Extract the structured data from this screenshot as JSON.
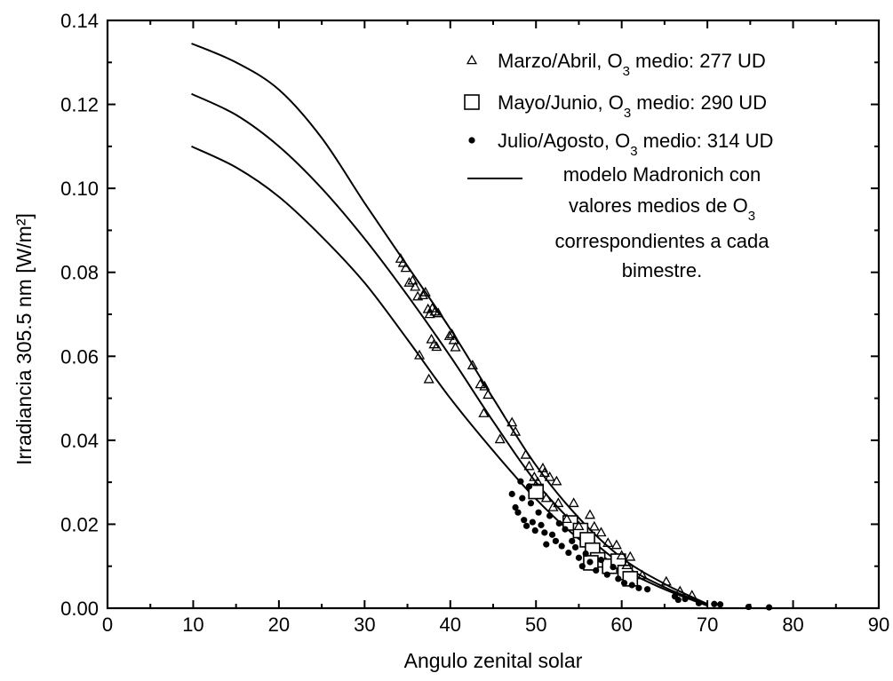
{
  "chart_data": {
    "type": "scatter",
    "title": "",
    "xlabel": "Angulo zenital solar",
    "ylabel": "Irradiancia 305.5 nm [W/m²]",
    "xlim": [
      0,
      90
    ],
    "ylim": [
      0,
      0.14
    ],
    "x_ticks": [
      "0",
      "10",
      "20",
      "30",
      "40",
      "50",
      "60",
      "70",
      "80",
      "90"
    ],
    "y_ticks": [
      "0.00",
      "0.02",
      "0.04",
      "0.06",
      "0.08",
      "0.10",
      "0.12",
      "0.14"
    ],
    "grid": false,
    "legend_position": "top-right",
    "legend": {
      "entries": [
        {
          "marker": "triangle-open",
          "text": "Marzo/Abril, O",
          "sub": "3",
          "suffix": " medio: 277 UD"
        },
        {
          "marker": "square-open",
          "text": "Mayo/Junio, O",
          "sub": "3",
          "suffix": " medio: 290 UD"
        },
        {
          "marker": "circle-filled",
          "text": "Julio/Agosto, O",
          "sub": "3",
          "suffix": " medio: 314 UD"
        }
      ],
      "model_lines": [
        {
          "text": "modelo Madronich con",
          "sub": "",
          "suffix": ""
        },
        {
          "text": "valores medios de O",
          "sub": "3",
          "suffix": ""
        },
        {
          "text": "correspondientes a cada",
          "sub": "",
          "suffix": ""
        },
        {
          "text": "bimestre.",
          "sub": "",
          "suffix": ""
        }
      ]
    },
    "series": [
      {
        "marker": "triangle-open",
        "points": [
          [
            34.2,
            0.0832
          ],
          [
            34.5,
            0.0822
          ],
          [
            34.8,
            0.081
          ],
          [
            35.2,
            0.0775
          ],
          [
            35.6,
            0.078
          ],
          [
            35.9,
            0.0765
          ],
          [
            36.2,
            0.0742
          ],
          [
            36.8,
            0.0745
          ],
          [
            37.1,
            0.0752
          ],
          [
            37.4,
            0.0712
          ],
          [
            37.6,
            0.07
          ],
          [
            37.9,
            0.0714
          ],
          [
            38.2,
            0.0706
          ],
          [
            38.6,
            0.0702
          ],
          [
            36.4,
            0.0602
          ],
          [
            37.5,
            0.0545
          ],
          [
            37.8,
            0.064
          ],
          [
            38.1,
            0.0628
          ],
          [
            38.4,
            0.0622
          ],
          [
            39.9,
            0.0648
          ],
          [
            40.2,
            0.0652
          ],
          [
            40.4,
            0.0638
          ],
          [
            40.6,
            0.0621
          ],
          [
            42.6,
            0.0578
          ],
          [
            43.5,
            0.0533
          ],
          [
            44.0,
            0.0528
          ],
          [
            44.4,
            0.0508
          ],
          [
            43.9,
            0.0464
          ],
          [
            45.8,
            0.0402
          ],
          [
            47.2,
            0.0442
          ],
          [
            47.6,
            0.042
          ],
          [
            48.8,
            0.0365
          ],
          [
            49.2,
            0.0338
          ],
          [
            49.8,
            0.0312
          ],
          [
            50.2,
            0.03
          ],
          [
            50.8,
            0.0333
          ],
          [
            51.0,
            0.0322
          ],
          [
            51.6,
            0.0312
          ],
          [
            52.4,
            0.0302
          ],
          [
            51.2,
            0.0262
          ],
          [
            52.0,
            0.024
          ],
          [
            52.6,
            0.025
          ],
          [
            53.6,
            0.0212
          ],
          [
            54.4,
            0.025
          ],
          [
            55.0,
            0.0195
          ],
          [
            56.3,
            0.0222
          ],
          [
            56.8,
            0.0194
          ],
          [
            57.6,
            0.018
          ],
          [
            58.4,
            0.0155
          ],
          [
            59.4,
            0.015
          ],
          [
            60.0,
            0.0125
          ],
          [
            61.0,
            0.0122
          ],
          [
            60.6,
            0.0102
          ],
          [
            62.4,
            0.0078
          ],
          [
            65.2,
            0.0063
          ],
          [
            66.8,
            0.004
          ],
          [
            68.2,
            0.003
          ]
        ]
      },
      {
        "marker": "square-open",
        "points": [
          [
            50.0,
            0.0278
          ],
          [
            54.0,
            0.0203
          ],
          [
            55.2,
            0.0185
          ],
          [
            56.0,
            0.0163
          ],
          [
            56.6,
            0.0138
          ],
          [
            57.2,
            0.0115
          ],
          [
            56.4,
            0.0108
          ],
          [
            58.6,
            0.01
          ],
          [
            59.6,
            0.0112
          ],
          [
            60.4,
            0.0085
          ],
          [
            61.0,
            0.007
          ]
        ]
      },
      {
        "marker": "circle-filled",
        "points": [
          [
            47.2,
            0.0272
          ],
          [
            47.6,
            0.024
          ],
          [
            47.9,
            0.0228
          ],
          [
            48.2,
            0.0302
          ],
          [
            48.4,
            0.0262
          ],
          [
            48.6,
            0.021
          ],
          [
            48.9,
            0.0196
          ],
          [
            49.2,
            0.029
          ],
          [
            49.4,
            0.025
          ],
          [
            49.6,
            0.0205
          ],
          [
            49.9,
            0.0185
          ],
          [
            50.3,
            0.0228
          ],
          [
            50.6,
            0.0198
          ],
          [
            51.0,
            0.018
          ],
          [
            51.2,
            0.0152
          ],
          [
            51.6,
            0.022
          ],
          [
            51.9,
            0.0175
          ],
          [
            52.3,
            0.016
          ],
          [
            52.7,
            0.0202
          ],
          [
            53.0,
            0.0148
          ],
          [
            53.4,
            0.0188
          ],
          [
            53.8,
            0.0132
          ],
          [
            54.2,
            0.016
          ],
          [
            54.6,
            0.0145
          ],
          [
            55.0,
            0.012
          ],
          [
            55.4,
            0.01
          ],
          [
            55.8,
            0.013
          ],
          [
            56.3,
            0.011
          ],
          [
            57.0,
            0.009
          ],
          [
            57.6,
            0.0115
          ],
          [
            58.3,
            0.008
          ],
          [
            59.0,
            0.0098
          ],
          [
            59.6,
            0.007
          ],
          [
            60.3,
            0.006
          ],
          [
            61.2,
            0.0055
          ],
          [
            62.0,
            0.0048
          ],
          [
            63.0,
            0.0045
          ],
          [
            66.2,
            0.0028
          ],
          [
            66.6,
            0.002
          ],
          [
            67.4,
            0.0022
          ],
          [
            69.0,
            0.0012
          ],
          [
            70.8,
            0.001
          ],
          [
            71.5,
            0.0009
          ],
          [
            74.8,
            0.0003
          ],
          [
            77.2,
            0.0002
          ]
        ]
      }
    ],
    "model_curves": [
      {
        "points": [
          [
            9.8,
            0.1345
          ],
          [
            15,
            0.13
          ],
          [
            20,
            0.1235
          ],
          [
            25,
            0.112
          ],
          [
            30,
            0.0965
          ],
          [
            35,
            0.0815
          ],
          [
            40,
            0.0665
          ],
          [
            45,
            0.05
          ],
          [
            50,
            0.034
          ],
          [
            55,
            0.0215
          ],
          [
            60,
            0.012
          ],
          [
            65,
            0.0058
          ],
          [
            70,
            0.001
          ]
        ]
      },
      {
        "points": [
          [
            9.8,
            0.1225
          ],
          [
            15,
            0.1175
          ],
          [
            20,
            0.11
          ],
          [
            25,
            0.1
          ],
          [
            30,
            0.088
          ],
          [
            35,
            0.0745
          ],
          [
            40,
            0.06
          ],
          [
            45,
            0.0445
          ],
          [
            50,
            0.03
          ],
          [
            55,
            0.019
          ],
          [
            60,
            0.0105
          ],
          [
            65,
            0.005
          ],
          [
            70,
            0.0008
          ]
        ]
      },
      {
        "points": [
          [
            9.8,
            0.11
          ],
          [
            15,
            0.105
          ],
          [
            20,
            0.098
          ],
          [
            25,
            0.0885
          ],
          [
            30,
            0.0775
          ],
          [
            35,
            0.064
          ],
          [
            40,
            0.05
          ],
          [
            45,
            0.0375
          ],
          [
            50,
            0.026
          ],
          [
            55,
            0.0165
          ],
          [
            60,
            0.0095
          ],
          [
            65,
            0.0045
          ],
          [
            70,
            0.0006
          ]
        ]
      }
    ]
  }
}
